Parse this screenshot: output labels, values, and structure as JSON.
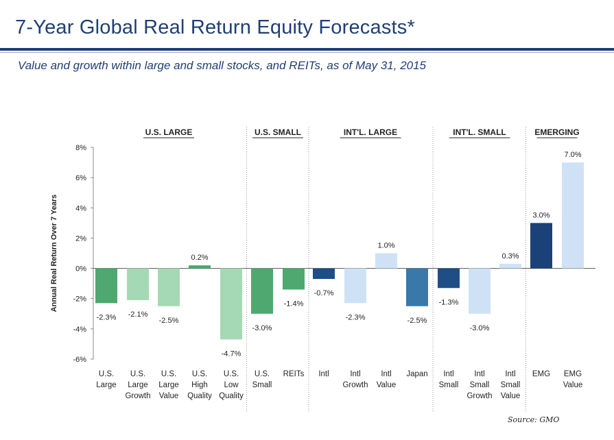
{
  "header": {
    "title": "7-Year Global Real Return Equity Forecasts*",
    "subtitle": "Value and growth within large and small stocks, and REITs, as of May 31, 2015"
  },
  "source": "Source: GMO",
  "chart_data": {
    "type": "bar",
    "ylabel": "Annual Real Return Over 7 Years",
    "ylim": [
      -6,
      8
    ],
    "yticks": [
      -6,
      -4,
      -2,
      0,
      2,
      4,
      6,
      8
    ],
    "ytick_labels": [
      "-6%",
      "-4%",
      "-2%",
      "0%",
      "2%",
      "4%",
      "6%",
      "8%"
    ],
    "groups": [
      {
        "name": "U.S. LARGE",
        "start": 0,
        "end": 4
      },
      {
        "name": "U.S. SMALL",
        "start": 5,
        "end": 6
      },
      {
        "name": "INT'L. LARGE",
        "start": 7,
        "end": 10
      },
      {
        "name": "INT'L. SMALL",
        "start": 11,
        "end": 13
      },
      {
        "name": "EMERGING",
        "start": 14,
        "end": 15
      }
    ],
    "categories": [
      [
        "U.S.",
        "Large"
      ],
      [
        "U.S.",
        "Large",
        "Growth"
      ],
      [
        "U.S.",
        "Large",
        "Value"
      ],
      [
        "U.S.",
        "High",
        "Quality"
      ],
      [
        "U.S.",
        "Low",
        "Quality"
      ],
      [
        "U.S.",
        "Small"
      ],
      [
        "REITs"
      ],
      [
        "Intl"
      ],
      [
        "Intl",
        "Growth"
      ],
      [
        "Intl",
        "Value"
      ],
      [
        "Japan"
      ],
      [
        "Intl",
        "Small"
      ],
      [
        "Intl",
        "Small",
        "Growth"
      ],
      [
        "Intl",
        "Small",
        "Value"
      ],
      [
        "EMG"
      ],
      [
        "EMG",
        "Value"
      ]
    ],
    "values": [
      -2.3,
      -2.1,
      -2.5,
      0.2,
      -4.7,
      -3.0,
      -1.4,
      -0.7,
      -2.3,
      1.0,
      -2.5,
      -1.3,
      -3.0,
      0.3,
      3.0,
      7.0
    ],
    "value_labels": [
      "-2.3%",
      "-2.1%",
      "-2.5%",
      "0.2%",
      "-4.7%",
      "-3.0%",
      "-1.4%",
      "-0.7%",
      "-2.3%",
      "1.0%",
      "-2.5%",
      "-1.3%",
      "-3.0%",
      "0.3%",
      "3.0%",
      "7.0%"
    ],
    "colors": [
      "#4ea86f",
      "#a5d8b4",
      "#a5d8b4",
      "#4ea86f",
      "#a5d8b4",
      "#4ea86f",
      "#4ea86f",
      "#1f4e86",
      "#cfe2f5",
      "#cfe2f5",
      "#3a78aa",
      "#1f4e86",
      "#cfe2f5",
      "#cfe2f5",
      "#1a4278",
      "#cfe2f5"
    ],
    "grid": false
  }
}
